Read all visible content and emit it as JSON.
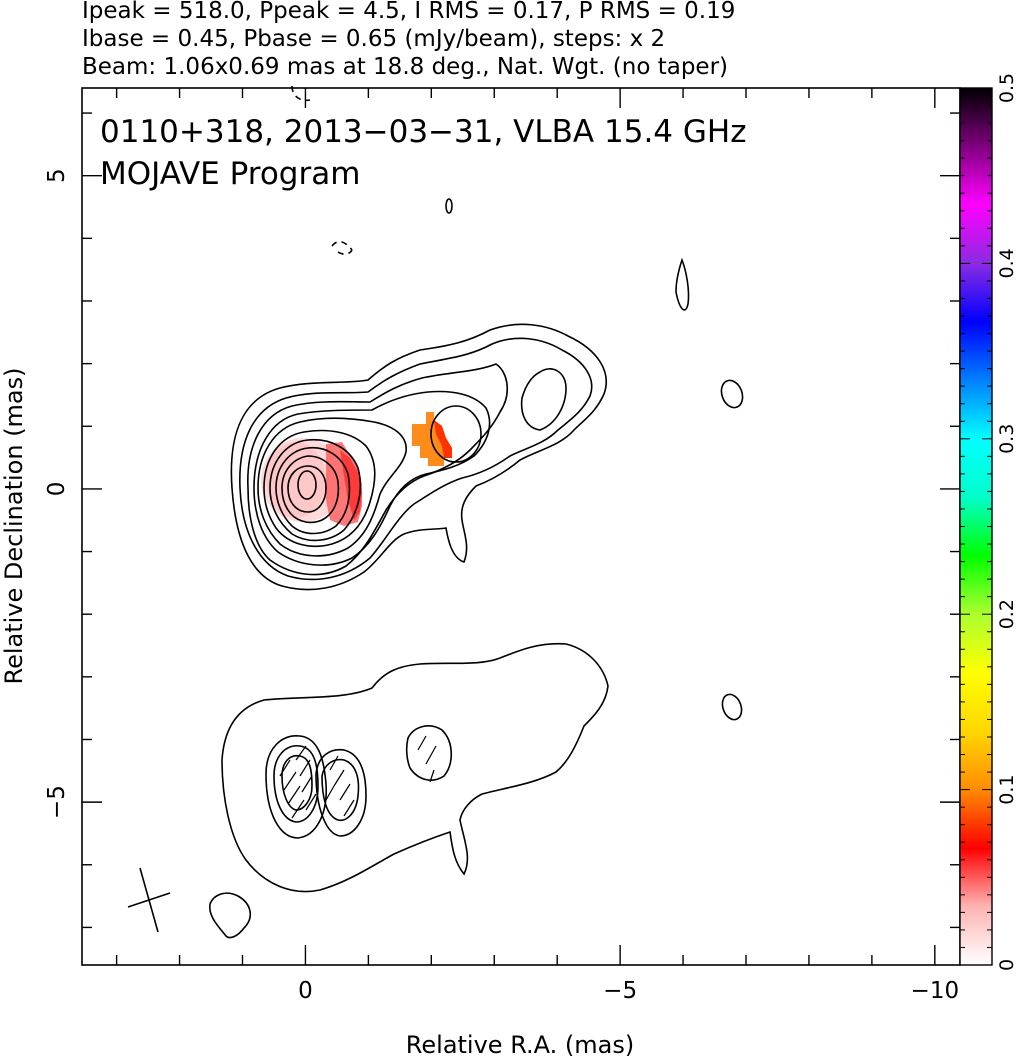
{
  "header": {
    "line1": "Ipeak = 518.0, Ppeak = 4.5, I RMS = 0.17, P RMS = 0.19",
    "line2": "Ibase = 0.45, Pbase = 0.65 (mJy/beam), steps: x 2",
    "line3": "Beam: 1.06x0.69 mas at 18.8 deg., Nat. Wgt. (no taper)"
  },
  "annotation": {
    "source_line": "0110+318, 2013−03−31, VLBA 15.4 GHz",
    "program_line": "MOJAVE Program"
  },
  "chart_data": {
    "type": "contour",
    "xlabel": "Relative R.A. (mas)",
    "ylabel": "Relative Declination (mas)",
    "xlim": [
      3.55,
      -10.4
    ],
    "ylim": [
      -7.6,
      6.4
    ],
    "x_ticks": [
      {
        "value": 0,
        "label": "0"
      },
      {
        "value": -5,
        "label": "−5"
      },
      {
        "value": -10,
        "label": "−10"
      }
    ],
    "y_ticks": [
      {
        "value": 5,
        "label": "5"
      },
      {
        "value": 0,
        "label": "0"
      },
      {
        "value": -5,
        "label": "−5"
      }
    ],
    "colorbar": {
      "range": [
        0,
        0.5
      ],
      "ticks": [
        {
          "value": 0,
          "label": "0"
        },
        {
          "value": 0.1,
          "label": "0.1"
        },
        {
          "value": 0.2,
          "label": "0.2"
        },
        {
          "value": 0.3,
          "label": "0.3"
        },
        {
          "value": 0.4,
          "label": "0.4"
        },
        {
          "value": 0.5,
          "label": "0.5"
        }
      ],
      "colors": [
        "#ffffff",
        "#ffb3b3",
        "#ff0000",
        "#ff8c00",
        "#ffd700",
        "#ffff00",
        "#adff2f",
        "#00ff00",
        "#00ffcc",
        "#00ffff",
        "#0080ff",
        "#0000ff",
        "#8a2be2",
        "#ff00ff",
        "#800080",
        "#000000"
      ]
    },
    "stokes_i_contours": {
      "base_mJy_per_beam": 0.45,
      "step_factor": 2,
      "peak_mJy_per_beam": 518.0,
      "core_position": [
        0,
        0
      ]
    },
    "polarization_patches": [
      {
        "ra": 0.0,
        "dec": 0.0,
        "fraction": 0.02
      },
      {
        "ra": -0.6,
        "dec": 0.0,
        "fraction": 0.08
      },
      {
        "ra": -1.9,
        "dec": 0.75,
        "fraction": 0.12
      },
      {
        "ra": -2.2,
        "dec": 0.65,
        "fraction": 0.1
      }
    ],
    "beam": {
      "major_mas": 1.06,
      "minor_mas": 0.69,
      "pa_deg": 18.8,
      "center": [
        2.5,
        -6.6
      ]
    }
  }
}
